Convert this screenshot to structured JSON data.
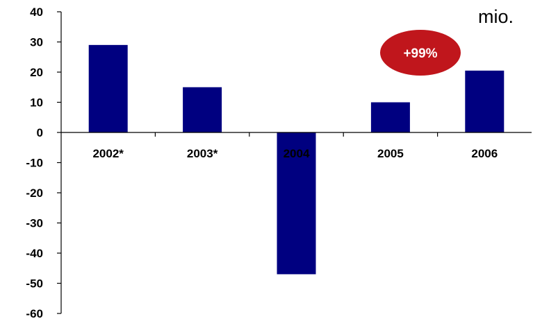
{
  "chart_data": {
    "type": "bar",
    "categories": [
      "2002*",
      "2003*",
      "2004",
      "2005",
      "2006"
    ],
    "values": [
      29,
      15,
      -47,
      10,
      20.5
    ],
    "ylim": [
      -60,
      40
    ],
    "yticks": [
      40,
      30,
      20,
      10,
      0,
      -10,
      -20,
      -30,
      -40,
      -50,
      -60
    ],
    "unit_label": "mio.",
    "annotation": "+99%",
    "bar_color": "#000080",
    "badge_color": "#c0161c",
    "grid": false,
    "legend": "none"
  }
}
